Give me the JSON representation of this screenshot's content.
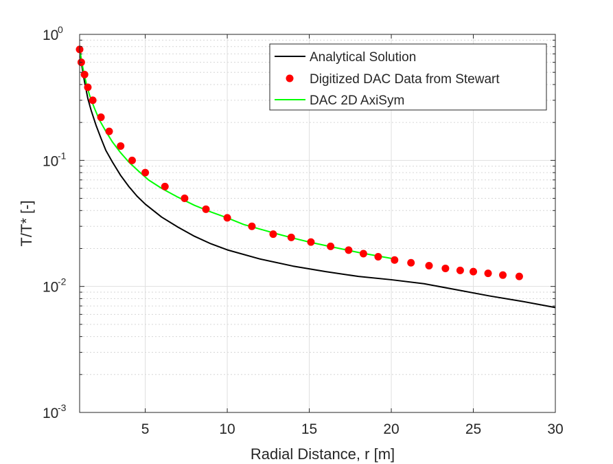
{
  "chart_data": {
    "type": "line",
    "title": "",
    "xlabel": "Radial Distance, r [m]",
    "ylabel": "T/T* [-]",
    "xlim": [
      1,
      30
    ],
    "ylim": [
      0.001,
      1
    ],
    "yscale": "log",
    "grid": true,
    "legend_position": "top-right",
    "x_ticks": [
      5,
      10,
      15,
      20,
      25,
      30
    ],
    "x_tick_labels": [
      "5",
      "10",
      "15",
      "20",
      "25",
      "30"
    ],
    "y_ticks": [
      {
        "value": 1,
        "base": "10",
        "exp": "0"
      },
      {
        "value": 0.1,
        "base": "10",
        "exp": "-1"
      },
      {
        "value": 0.01,
        "base": "10",
        "exp": "-2"
      },
      {
        "value": 0.001,
        "base": "10",
        "exp": "-3"
      }
    ],
    "series": [
      {
        "name": "Analytical Solution",
        "kind": "line",
        "color": "#000000",
        "x": [
          1.0,
          1.1,
          1.2,
          1.3,
          1.5,
          1.7,
          2.0,
          2.3,
          2.6,
          3.0,
          3.5,
          4.0,
          4.5,
          5.0,
          6.0,
          7.0,
          8.0,
          9.0,
          10.0,
          12.0,
          14.0,
          16.0,
          18.0,
          20.0,
          22.0,
          24.0,
          26.0,
          28.0,
          30.0
        ],
        "y": [
          0.78,
          0.6,
          0.5,
          0.42,
          0.31,
          0.25,
          0.19,
          0.15,
          0.12,
          0.097,
          0.076,
          0.062,
          0.052,
          0.045,
          0.0355,
          0.0295,
          0.025,
          0.0218,
          0.0195,
          0.0165,
          0.0145,
          0.0131,
          0.012,
          0.0113,
          0.0105,
          0.0094,
          0.0084,
          0.0076,
          0.0068
        ]
      },
      {
        "name": "Digitized DAC Data from Stewart",
        "kind": "scatter",
        "color": "#ff0000",
        "x": [
          1.0,
          1.1,
          1.3,
          1.5,
          1.8,
          2.3,
          2.8,
          3.5,
          4.2,
          5.0,
          6.2,
          7.4,
          8.7,
          10.0,
          11.5,
          12.8,
          13.9,
          15.1,
          16.3,
          17.4,
          18.3,
          19.2,
          20.2,
          21.2,
          22.3,
          23.3,
          24.2,
          25.0,
          25.9,
          26.8,
          27.8
        ],
        "y": [
          0.76,
          0.6,
          0.48,
          0.38,
          0.3,
          0.22,
          0.17,
          0.13,
          0.1,
          0.08,
          0.062,
          0.05,
          0.041,
          0.035,
          0.03,
          0.026,
          0.0245,
          0.0225,
          0.0208,
          0.0194,
          0.0182,
          0.0172,
          0.0162,
          0.0154,
          0.0146,
          0.0139,
          0.0134,
          0.0131,
          0.0127,
          0.0123,
          0.012
        ]
      },
      {
        "name": "DAC 2D AxiSym",
        "kind": "line",
        "color": "#00ff00",
        "x": [
          1.0,
          1.1,
          1.2,
          1.4,
          1.6,
          1.9,
          2.2,
          2.6,
          3.0,
          3.5,
          4.0,
          4.6,
          5.2,
          6.0,
          7.0,
          8.0,
          9.0,
          10.0,
          11.0,
          12.0,
          13.0,
          14.0,
          15.0,
          16.0,
          17.0,
          18.0,
          19.0,
          20.0
        ],
        "y": [
          0.78,
          0.64,
          0.54,
          0.41,
          0.33,
          0.26,
          0.21,
          0.17,
          0.14,
          0.115,
          0.097,
          0.082,
          0.07,
          0.06,
          0.051,
          0.044,
          0.039,
          0.035,
          0.031,
          0.0285,
          0.0262,
          0.0242,
          0.0225,
          0.0211,
          0.0198,
          0.0186,
          0.0176,
          0.0167
        ]
      }
    ]
  }
}
